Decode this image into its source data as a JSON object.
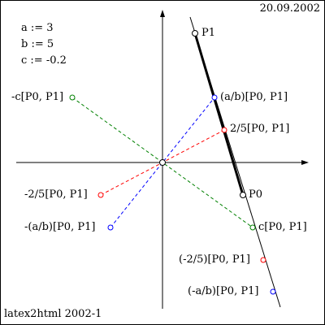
{
  "date": "20.09.2002",
  "footer": "latex2html 2002-1",
  "params": {
    "a": "a := 3",
    "b": "b := 5",
    "c": "c := -0.2"
  },
  "colors": {
    "axis": "#000000",
    "green": "#008000",
    "blue": "#0000ff",
    "red": "#ff0000"
  },
  "points": {
    "P1": "P1",
    "P0": "P0",
    "ab": "(a/b)[P0, P1]",
    "two_fifths": "2/5[P0, P1]",
    "neg_two_fifths": "-2/5[P0, P1]",
    "neg_ab": "-(a/b)[P0, P1]",
    "neg_c": "-c[P0, P1]",
    "c": "c[P0, P1]",
    "neg_two_fifths_paren": "(-2/5)[P0, P1]",
    "neg_a_b": "(-a/b)[P0, P1]"
  }
}
